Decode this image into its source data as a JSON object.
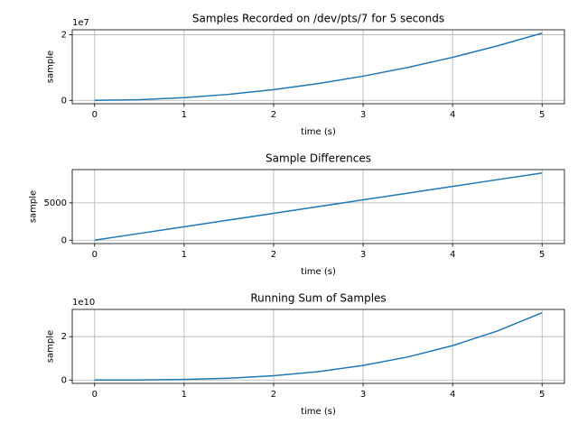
{
  "chart_data": [
    {
      "type": "line",
      "title": "Samples Recorded on /dev/pts/7 for 5 seconds",
      "xlabel": "time (s)",
      "ylabel": "sample",
      "x": [
        0,
        0.5,
        1,
        1.5,
        2,
        2.5,
        3,
        3.5,
        4,
        4.5,
        5
      ],
      "values": [
        0,
        205000,
        820000,
        1845000,
        3280000,
        5125000,
        7380000,
        10045000,
        13120000,
        16605000,
        20500000
      ],
      "color": "#1f77b4",
      "xlim": [
        -0.25,
        5.25
      ],
      "xticks": [
        0,
        1,
        2,
        3,
        4,
        5
      ],
      "ylim": [
        -1025000,
        21525000
      ],
      "yticks": [
        0,
        {
          "value": 20000000,
          "label": "2"
        }
      ],
      "offset_label": "1e7",
      "grid": true
    },
    {
      "type": "line",
      "title": "Sample Differences",
      "xlabel": "time (s)",
      "ylabel": "sample",
      "x": [
        0,
        0.5,
        1,
        1.5,
        2,
        2.5,
        3,
        3.5,
        4,
        4.5,
        5
      ],
      "values": [
        0,
        900,
        1800,
        2700,
        3600,
        4500,
        5400,
        6300,
        7200,
        8100,
        9000
      ],
      "color": "#1f77b4",
      "xlim": [
        -0.25,
        5.25
      ],
      "xticks": [
        0,
        1,
        2,
        3,
        4,
        5
      ],
      "ylim": [
        -450,
        9450
      ],
      "yticks": [
        0,
        5000
      ],
      "grid": true
    },
    {
      "type": "line",
      "title": "Running Sum of Samples",
      "xlabel": "time (s)",
      "ylabel": "sample",
      "x": [
        0,
        0.5,
        1,
        1.5,
        2,
        2.5,
        3,
        3.5,
        4,
        4.5,
        5
      ],
      "values": [
        0,
        31000000,
        248000000,
        837000000,
        1984000000,
        3875000000,
        6696000000,
        10633000000,
        15872000000,
        22599000000,
        31000000000
      ],
      "color": "#1f77b4",
      "xlim": [
        -0.25,
        5.25
      ],
      "xticks": [
        0,
        1,
        2,
        3,
        4,
        5
      ],
      "ylim": [
        -1550000000,
        32550000000
      ],
      "yticks": [
        0,
        {
          "value": 20000000000,
          "label": "2"
        }
      ],
      "offset_label": "1e10",
      "grid": true
    }
  ]
}
